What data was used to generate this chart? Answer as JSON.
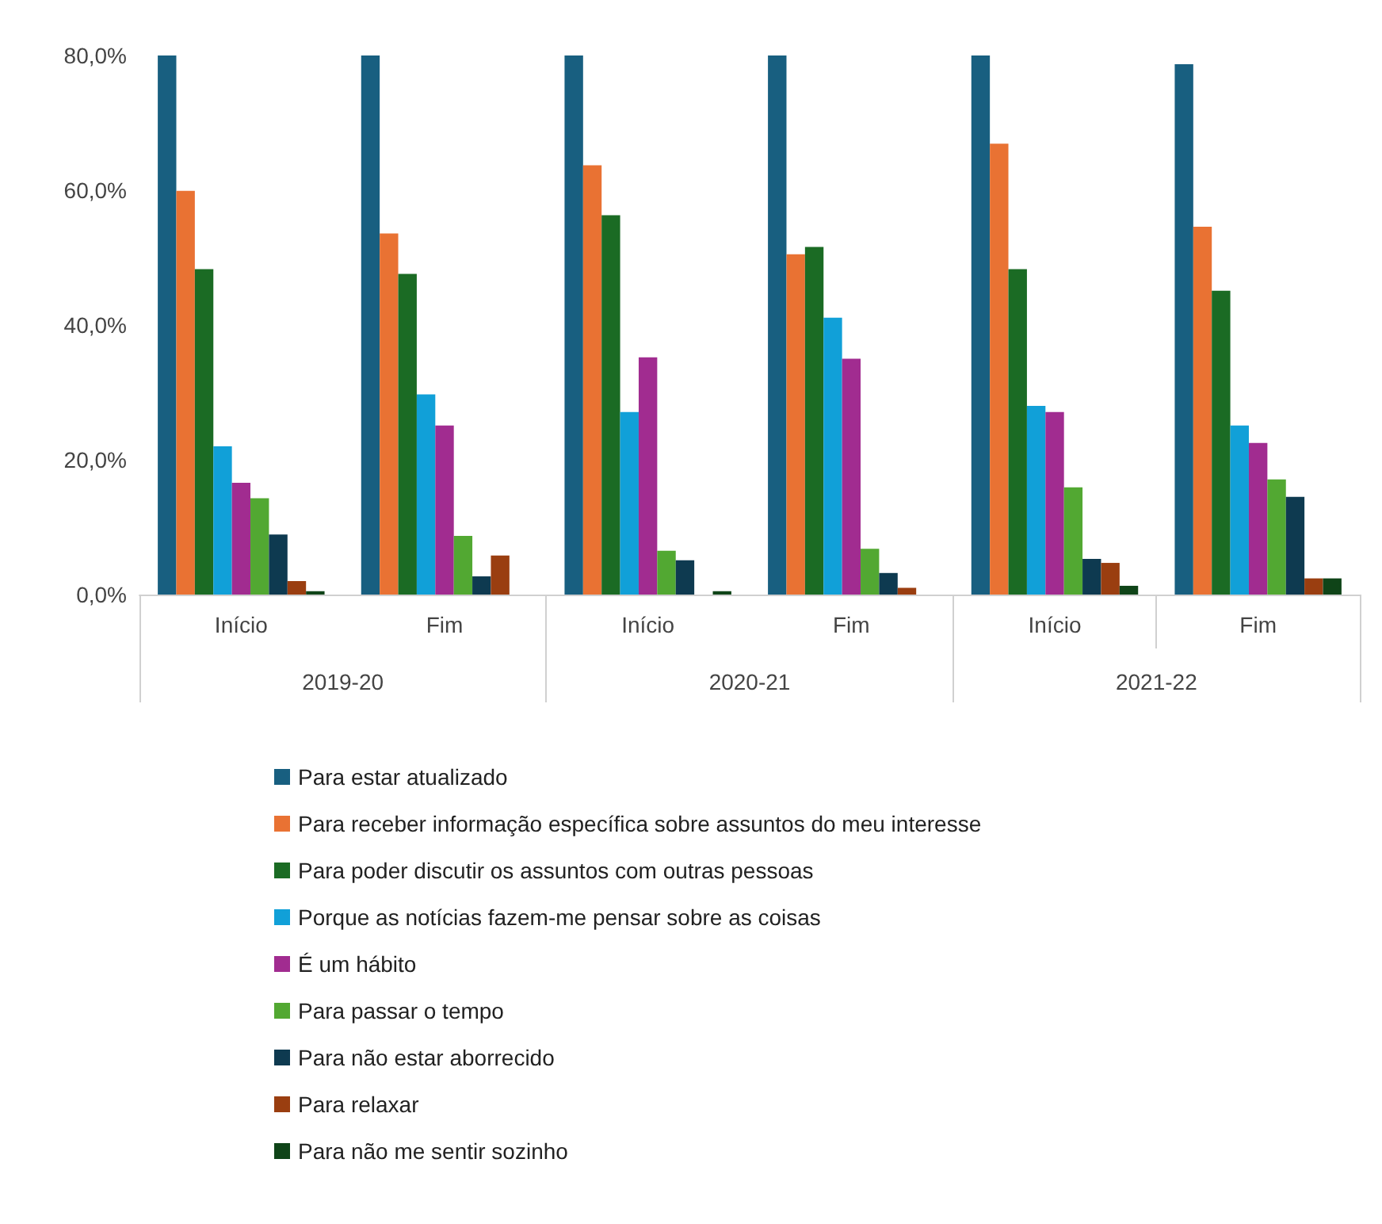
{
  "chart_data": {
    "type": "bar",
    "categories": [
      "Início",
      "Fim",
      "Início",
      "Fim",
      "Início",
      "Fim"
    ],
    "annotations": [
      "2019-20",
      "2020-21",
      "2021-22"
    ],
    "ylim": [
      0,
      80
    ],
    "yticks": [
      {
        "value": 0,
        "label": "0,0%"
      },
      {
        "value": 20,
        "label": "20,0%"
      },
      {
        "value": 40,
        "label": "40,0%"
      },
      {
        "value": 60,
        "label": "60,0%"
      },
      {
        "value": 80,
        "label": "80,0%"
      }
    ],
    "grid": false,
    "legend": "bottom",
    "series": [
      {
        "name": "Para estar atualizado",
        "color": "#185f80",
        "values": [
          80,
          80,
          80,
          80,
          80,
          78.7
        ]
      },
      {
        "name": "Para receber informação específica sobre assuntos do meu interesse",
        "color": "#e97233",
        "values": [
          59.9,
          53.6,
          63.7,
          50.5,
          66.9,
          54.6
        ]
      },
      {
        "name": "Para poder discutir os assuntos com outras pessoas",
        "color": "#1b6b24",
        "values": [
          48.3,
          47.6,
          56.3,
          51.6,
          48.3,
          45.1
        ]
      },
      {
        "name": "Porque as notícias fazem-me pensar sobre as coisas",
        "color": "#11a0d8",
        "values": [
          22.0,
          29.7,
          27.1,
          41.1,
          28.0,
          25.1
        ]
      },
      {
        "name": "É um hábito",
        "color": "#a12c90",
        "values": [
          16.6,
          25.1,
          35.2,
          35.0,
          27.1,
          22.5
        ]
      },
      {
        "name": "Para passar o tempo",
        "color": "#52a832",
        "values": [
          14.3,
          8.7,
          6.5,
          6.8,
          15.9,
          17.1
        ]
      },
      {
        "name": "Para não estar aborrecido",
        "color": "#0e3a50",
        "values": [
          8.9,
          2.7,
          5.1,
          3.2,
          5.3,
          14.5
        ]
      },
      {
        "name": "Para relaxar",
        "color": "#9a3e10",
        "values": [
          2.0,
          5.8,
          0,
          1.0,
          4.7,
          2.4
        ]
      },
      {
        "name": "Para não me sentir sozinho",
        "color": "#0f4418",
        "values": [
          0.5,
          0,
          0.5,
          0,
          1.3,
          2.4
        ]
      }
    ]
  }
}
